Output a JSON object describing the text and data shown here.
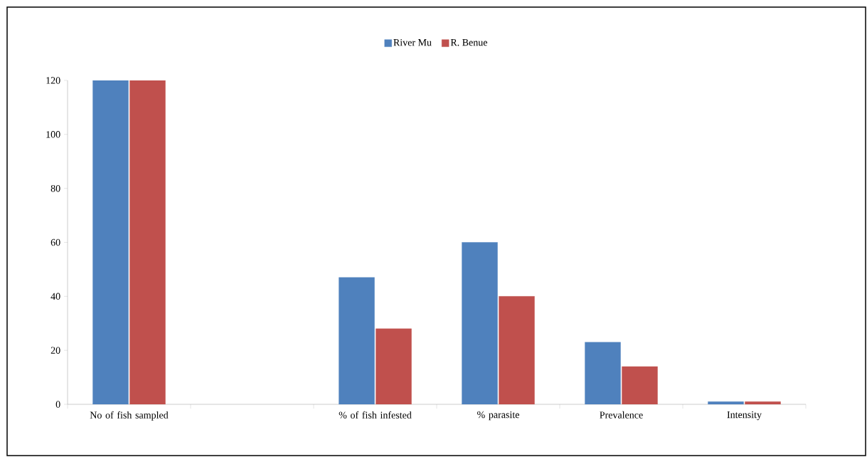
{
  "chart_data": {
    "type": "bar",
    "categories": [
      "No of fish sampled",
      null,
      "% of fish infested",
      "% parasite",
      "Prevalence",
      "Intensity"
    ],
    "series": [
      {
        "name": "River Mu",
        "color": "#4f81bd",
        "values": [
          120,
          null,
          47,
          60,
          23,
          1
        ]
      },
      {
        "name": "R. Benue",
        "color": "#c0504d",
        "values": [
          120,
          null,
          28,
          40,
          14,
          1
        ]
      }
    ],
    "ylim": [
      0,
      120
    ],
    "yticks": [
      0,
      20,
      40,
      60,
      80,
      100,
      120
    ],
    "legend": "top"
  }
}
